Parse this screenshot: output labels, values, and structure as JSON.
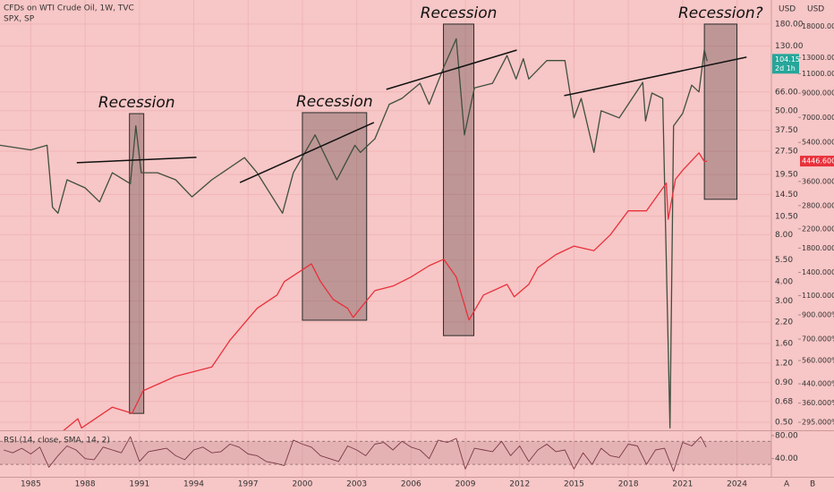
{
  "chart_data": [
    {
      "type": "line",
      "log_scale": true,
      "grid": true,
      "xlim": [
        1983.3,
        2025.9
      ],
      "xticks": [
        1985,
        1988,
        1991,
        1994,
        1997,
        2000,
        2003,
        2006,
        2009,
        2012,
        2015,
        2018,
        2021,
        2024
      ],
      "ylim": [
        0.45,
        257
      ],
      "yticks": [
        {
          "value": 0.5,
          "label": "0.50"
        },
        {
          "value": 0.68,
          "label": "0.68"
        },
        {
          "value": 0.9,
          "label": "0.90"
        },
        {
          "value": 1.2,
          "label": "1.20"
        },
        {
          "value": 1.6,
          "label": "1.60"
        },
        {
          "value": 2.2,
          "label": "2.20"
        },
        {
          "value": 3,
          "label": "3.00"
        },
        {
          "value": 4,
          "label": "4.00"
        },
        {
          "value": 5.5,
          "label": "5.50"
        },
        {
          "value": 8,
          "label": "8.00"
        },
        {
          "value": 10.5,
          "label": "10.50"
        },
        {
          "value": 14.5,
          "label": "14.50"
        },
        {
          "value": 19.5,
          "label": "19.50"
        },
        {
          "value": 27.5,
          "label": "27.50"
        },
        {
          "value": 37.5,
          "label": "37.50"
        },
        {
          "value": 50,
          "label": "50.00"
        },
        {
          "value": 66,
          "label": "66.00"
        },
        {
          "value": 130,
          "label": "130.00"
        },
        {
          "value": 180,
          "label": "180.00"
        }
      ],
      "y_unit": "USD",
      "y2lim": [
        274,
        23700
      ],
      "y2ticks": [
        {
          "value": 295,
          "label": "295.000%"
        },
        {
          "value": 360,
          "label": "360.000%"
        },
        {
          "value": 440,
          "label": "440.000%"
        },
        {
          "value": 560,
          "label": "560.000%"
        },
        {
          "value": 700,
          "label": "700.000%"
        },
        {
          "value": 900,
          "label": "900.000%"
        },
        {
          "value": 1100,
          "label": "1100.000%"
        },
        {
          "value": 1400,
          "label": "1400.000%"
        },
        {
          "value": 1800,
          "label": "1800.000%"
        },
        {
          "value": 2200,
          "label": "2200.000%"
        },
        {
          "value": 2800,
          "label": "2800.000%"
        },
        {
          "value": 3600,
          "label": "3600.000%"
        },
        {
          "value": 5400,
          "label": "5400.000%"
        },
        {
          "value": 7000,
          "label": "7000.000%"
        },
        {
          "value": 9000,
          "label": "9000.000%"
        },
        {
          "value": 11000,
          "label": "11000.000%"
        },
        {
          "value": 13000,
          "label": "13000.000%"
        },
        {
          "value": 18000,
          "label": "18000.000%"
        }
      ],
      "y2_unit": "USD",
      "countdown": "2d 1h",
      "series": [
        {
          "name": "CFDs on WTI Crude Oil, 1W, TVC",
          "color": "#3f4f3e",
          "x": [
            1983.3,
            1985,
            1985.9,
            1986.2,
            1986.5,
            1987,
            1988,
            1988.8,
            1989.5,
            1990.5,
            1990.8,
            1991.1,
            1992,
            1993,
            1993.9,
            1995,
            1996.8,
            1997.5,
            1998.9,
            1999.5,
            2000.7,
            2001.9,
            2002.9,
            2003.2,
            2004,
            2004.8,
            2005.5,
            2006.5,
            2007,
            2007.8,
            2008.5,
            2008.95,
            2009.5,
            2010.5,
            2011.3,
            2011.8,
            2012.2,
            2012.5,
            2013.5,
            2014.5,
            2015,
            2015.4,
            2016.1,
            2016.5,
            2017.5,
            2018.8,
            2018.95,
            2019.3,
            2019.9,
            2020.3,
            2020.5,
            2021,
            2021.5,
            2021.9,
            2022.2,
            2022.35
          ],
          "values": [
            30,
            28,
            30,
            12,
            11,
            18,
            16,
            13,
            20,
            17,
            40,
            20,
            20,
            18,
            14,
            18,
            25,
            20,
            11,
            20,
            35,
            18,
            30,
            27,
            33,
            55,
            60,
            75,
            55,
            95,
            145,
            35,
            70,
            75,
            113,
            80,
            108,
            80,
            105,
            105,
            45,
            60,
            27,
            50,
            45,
            76,
            43,
            65,
            60,
            0.46,
            40,
            48,
            73,
            66,
            123,
            104.15
          ]
        },
        {
          "name": "SPX, SP",
          "color": "#e8313b",
          "axis": "y2",
          "last_label": "4446.600%",
          "x": [
            1986.6,
            1987.6,
            1987.8,
            1989.5,
            1990.6,
            1991.2,
            1993,
            1995,
            1996,
            1997.5,
            1998.6,
            1999,
            2000.5,
            2001,
            2001.7,
            2002.5,
            2002.8,
            2003.2,
            2004,
            2005,
            2006,
            2007,
            2007.8,
            2008.5,
            2009.2,
            2010,
            2011.3,
            2011.7,
            2012.5,
            2013,
            2014,
            2015,
            2016.1,
            2017,
            2018,
            2019,
            2020.1,
            2020.2,
            2020.6,
            2021,
            2021.9,
            2022.2,
            2022.35
          ],
          "values": [
            262,
            306,
            278,
            345,
            324,
            409,
            476,
            524,
            692,
            963,
            1106,
            1272,
            1530,
            1272,
            1057,
            963,
            877,
            963,
            1158,
            1214,
            1333,
            1500,
            1604,
            1333,
            853,
            1106,
            1236,
            1086,
            1236,
            1470,
            1683,
            1839,
            1754,
            2064,
            2652,
            2652,
            3539,
            2431,
            3678,
            4042,
            4845,
            4425,
            4446.6
          ]
        }
      ],
      "trendlines": [
        {
          "x": [
            1987.54,
            1994.15
          ],
          "y": [
            23.2,
            25.1
          ]
        },
        {
          "x": [
            1996.55,
            2003.95
          ],
          "y": [
            17.3,
            42
          ]
        },
        {
          "x": [
            2004.64,
            2011.84
          ],
          "y": [
            68.6,
            122.6
          ]
        },
        {
          "x": [
            2014.46,
            2024.53
          ],
          "y": [
            62.5,
            110.4
          ]
        }
      ],
      "annotations": [
        {
          "label": "Recession",
          "x": [
            1990.45,
            1991.24
          ],
          "y": [
            0.57,
            47.9
          ]
        },
        {
          "label": "Recession",
          "x": [
            2000.0,
            2003.55
          ],
          "y": [
            2.26,
            48.6
          ]
        },
        {
          "label": "Recession",
          "x": [
            2007.79,
            2009.47
          ],
          "y": [
            1.8,
            180
          ]
        },
        {
          "label": "Recession?",
          "x": [
            2022.2,
            2024.0
          ],
          "y": [
            13.5,
            180
          ]
        }
      ],
      "footer_buttons": [
        "A",
        "B"
      ]
    },
    {
      "type": "line",
      "title": "RSI (14, close, SMA, 14, 2)",
      "xlim": [
        1983.3,
        2025.9
      ],
      "ylim": [
        10,
        86
      ],
      "yticks": [
        {
          "value": 40,
          "label": "40.00"
        },
        {
          "value": 80,
          "label": "80.00"
        }
      ],
      "band": [
        30,
        70
      ],
      "series": [
        {
          "color": "#7a3a45",
          "x": [
            1983.5,
            1984,
            1984.5,
            1985,
            1985.5,
            1986,
            1986.5,
            1987,
            1987.5,
            1988,
            1988.5,
            1989,
            1989.5,
            1990,
            1990.5,
            1991,
            1991.5,
            1992,
            1992.5,
            1993,
            1993.5,
            1994,
            1994.5,
            1995,
            1995.5,
            1996,
            1996.5,
            1997,
            1997.5,
            1998,
            1998.5,
            1999,
            1999.5,
            2000,
            2000.5,
            2001,
            2001.5,
            2002,
            2002.5,
            2003,
            2003.5,
            2004,
            2004.5,
            2005,
            2005.5,
            2006,
            2006.5,
            2007,
            2007.5,
            2008,
            2008.5,
            2009,
            2009.5,
            2010,
            2010.5,
            2011,
            2011.5,
            2012,
            2012.5,
            2013,
            2013.5,
            2014,
            2014.5,
            2015,
            2015.5,
            2016,
            2016.5,
            2017,
            2017.5,
            2018,
            2018.5,
            2019,
            2019.5,
            2020,
            2020.5,
            2021,
            2021.5,
            2022,
            2022.3
          ],
          "values": [
            55,
            50,
            58,
            48,
            60,
            25,
            45,
            62,
            55,
            40,
            38,
            60,
            55,
            50,
            78,
            35,
            52,
            55,
            58,
            45,
            38,
            55,
            60,
            50,
            52,
            65,
            60,
            48,
            45,
            35,
            32,
            28,
            72,
            65,
            60,
            45,
            40,
            35,
            62,
            55,
            45,
            65,
            68,
            55,
            70,
            60,
            55,
            40,
            72,
            68,
            75,
            22,
            58,
            55,
            52,
            70,
            45,
            62,
            35,
            55,
            65,
            52,
            55,
            22,
            50,
            30,
            58,
            45,
            42,
            65,
            62,
            30,
            55,
            58,
            18,
            68,
            62,
            78,
            60
          ]
        }
      ]
    }
  ]
}
